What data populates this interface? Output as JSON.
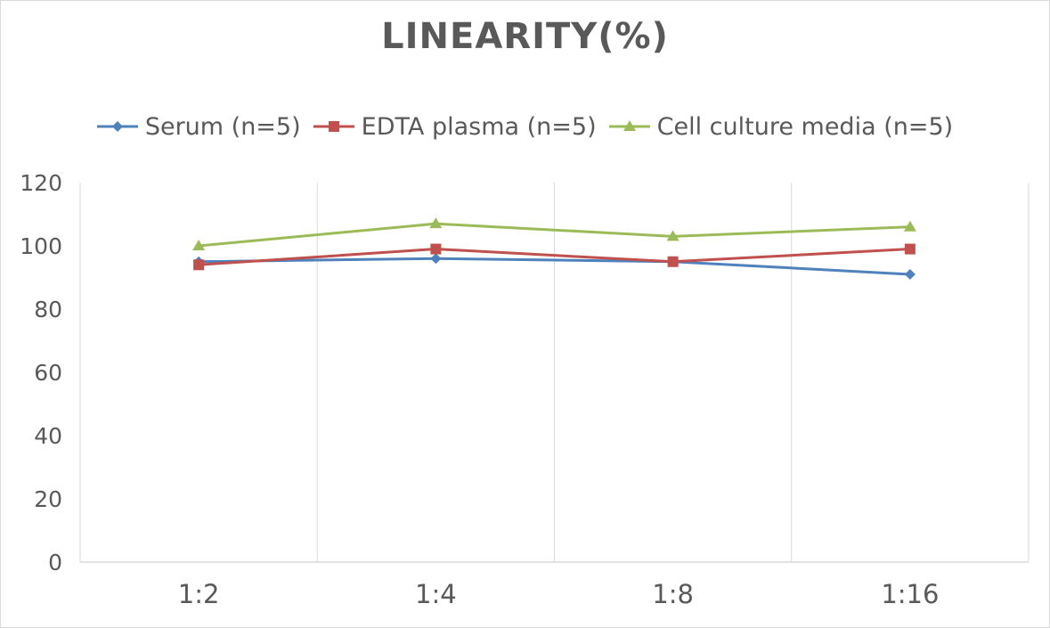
{
  "chart_data": {
    "type": "line",
    "title": "LINEARITY(%)",
    "categories": [
      "1:2",
      "1:4",
      "1:8",
      "1:16"
    ],
    "series": [
      {
        "name": "Serum (n=5)",
        "values": [
          95,
          96,
          95,
          91
        ],
        "color": "#4f81bd",
        "marker": "diamond"
      },
      {
        "name": "EDTA plasma (n=5)",
        "values": [
          94,
          99,
          95,
          99
        ],
        "color": "#c0504d",
        "marker": "square"
      },
      {
        "name": "Cell culture media (n=5)",
        "values": [
          100,
          107,
          103,
          106
        ],
        "color": "#9bbb59",
        "marker": "triangle"
      }
    ],
    "ylim": [
      0,
      120
    ],
    "yticks": [
      "0",
      "20",
      "40",
      "60",
      "80",
      "100",
      "120"
    ],
    "grid": "vertical",
    "legend_position": "top"
  }
}
